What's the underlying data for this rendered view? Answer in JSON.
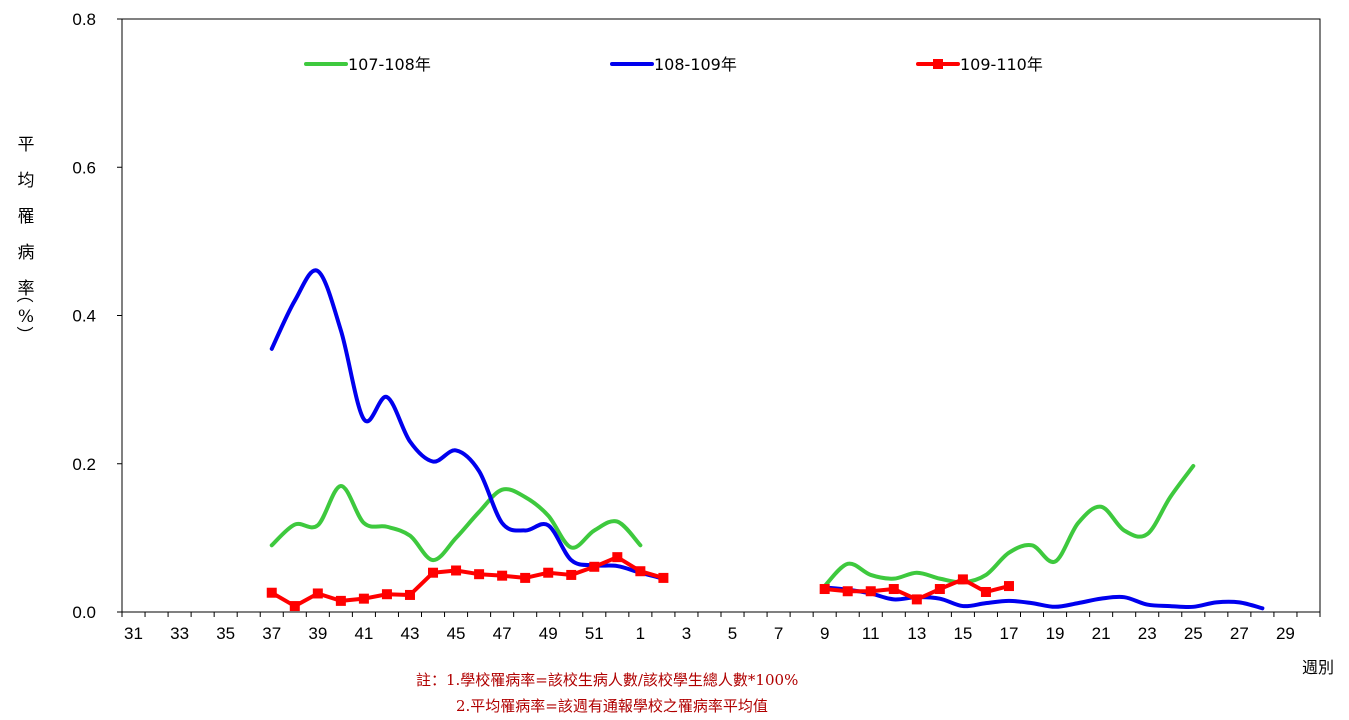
{
  "chart_data": {
    "type": "line",
    "ylabel_chars": [
      "平",
      "均",
      "罹",
      "病",
      "率",
      "（",
      "%",
      "）"
    ],
    "xlabel": "週別",
    "ylim": [
      0,
      0.8
    ],
    "yticks": [
      "0.0",
      "0.2",
      "0.4",
      "0.6",
      "0.8"
    ],
    "xtick_labels": [
      "31",
      "33",
      "35",
      "37",
      "39",
      "41",
      "43",
      "45",
      "47",
      "49",
      "51",
      "1",
      "3",
      "5",
      "7",
      "9",
      "11",
      "13",
      "15",
      "17",
      "19",
      "21",
      "23",
      "25",
      "27",
      "29"
    ],
    "categories": [
      "31",
      "32",
      "33",
      "34",
      "35",
      "36",
      "37",
      "38",
      "39",
      "40",
      "41",
      "42",
      "43",
      "44",
      "45",
      "46",
      "47",
      "48",
      "49",
      "50",
      "51",
      "52",
      "1",
      "2",
      "3",
      "4",
      "5",
      "6",
      "7",
      "8",
      "9",
      "10",
      "11",
      "12",
      "13",
      "14",
      "15",
      "16",
      "17",
      "18",
      "19",
      "20",
      "21",
      "22",
      "23",
      "24",
      "25",
      "26",
      "27",
      "28",
      "29",
      "30"
    ],
    "series": [
      {
        "name": "107-108年",
        "color": "#3ec93e",
        "marker": "none",
        "segments": [
          [
            [
              6,
              0.09
            ],
            [
              7,
              0.118
            ],
            [
              8,
              0.117
            ],
            [
              9,
              0.17
            ],
            [
              10,
              0.12
            ],
            [
              11,
              0.115
            ],
            [
              12,
              0.103
            ],
            [
              13,
              0.07
            ],
            [
              14,
              0.1
            ],
            [
              15,
              0.135
            ],
            [
              16,
              0.165
            ],
            [
              17,
              0.155
            ],
            [
              18,
              0.13
            ],
            [
              19,
              0.087
            ],
            [
              20,
              0.11
            ],
            [
              21,
              0.122
            ],
            [
              22,
              0.09
            ]
          ],
          [
            [
              30,
              0.035
            ],
            [
              31,
              0.065
            ],
            [
              32,
              0.05
            ],
            [
              33,
              0.045
            ],
            [
              34,
              0.053
            ],
            [
              35,
              0.045
            ],
            [
              36,
              0.04
            ],
            [
              37,
              0.05
            ],
            [
              38,
              0.08
            ],
            [
              39,
              0.09
            ],
            [
              40,
              0.068
            ],
            [
              41,
              0.12
            ],
            [
              42,
              0.142
            ],
            [
              43,
              0.11
            ],
            [
              44,
              0.105
            ],
            [
              45,
              0.155
            ],
            [
              46,
              0.197
            ]
          ]
        ]
      },
      {
        "name": "108-109年",
        "color": "#0000ee",
        "marker": "none",
        "segments": [
          [
            [
              6,
              0.355
            ],
            [
              7,
              0.42
            ],
            [
              8,
              0.46
            ],
            [
              9,
              0.38
            ],
            [
              10,
              0.26
            ],
            [
              11,
              0.29
            ],
            [
              12,
              0.23
            ],
            [
              13,
              0.203
            ],
            [
              14,
              0.218
            ],
            [
              15,
              0.19
            ],
            [
              16,
              0.12
            ],
            [
              17,
              0.11
            ],
            [
              18,
              0.117
            ],
            [
              19,
              0.07
            ],
            [
              20,
              0.063
            ],
            [
              21,
              0.062
            ],
            [
              22,
              0.053
            ],
            [
              23,
              0.045
            ]
          ],
          [
            [
              30,
              0.033
            ],
            [
              31,
              0.03
            ],
            [
              32,
              0.025
            ],
            [
              33,
              0.017
            ],
            [
              34,
              0.02
            ],
            [
              35,
              0.018
            ],
            [
              36,
              0.008
            ],
            [
              37,
              0.012
            ],
            [
              38,
              0.015
            ],
            [
              39,
              0.012
            ],
            [
              40,
              0.007
            ],
            [
              41,
              0.012
            ],
            [
              42,
              0.018
            ],
            [
              43,
              0.02
            ],
            [
              44,
              0.01
            ],
            [
              45,
              0.008
            ],
            [
              46,
              0.007
            ],
            [
              47,
              0.013
            ],
            [
              48,
              0.013
            ],
            [
              49,
              0.005
            ]
          ]
        ]
      },
      {
        "name": "109-110年",
        "color": "#ff0000",
        "marker": "square",
        "segments": [
          [
            [
              6,
              0.026
            ],
            [
              7,
              0.008
            ],
            [
              8,
              0.025
            ],
            [
              9,
              0.015
            ],
            [
              10,
              0.018
            ],
            [
              11,
              0.024
            ],
            [
              12,
              0.023
            ],
            [
              13,
              0.053
            ],
            [
              14,
              0.056
            ],
            [
              15,
              0.051
            ],
            [
              16,
              0.049
            ],
            [
              17,
              0.046
            ],
            [
              18,
              0.053
            ],
            [
              19,
              0.05
            ],
            [
              20,
              0.061
            ],
            [
              21,
              0.074
            ],
            [
              22,
              0.055
            ],
            [
              23,
              0.046
            ]
          ],
          [
            [
              30,
              0.031
            ],
            [
              31,
              0.028
            ],
            [
              32,
              0.028
            ],
            [
              33,
              0.031
            ],
            [
              34,
              0.017
            ],
            [
              35,
              0.031
            ],
            [
              36,
              0.044
            ],
            [
              37,
              0.027
            ],
            [
              38,
              0.035
            ]
          ]
        ]
      }
    ]
  },
  "notes": [
    "註：1.學校罹病率=該校生病人數/該校學生總人數*100%",
    "2.平均罹病率=該週有通報學校之罹病率平均值"
  ]
}
